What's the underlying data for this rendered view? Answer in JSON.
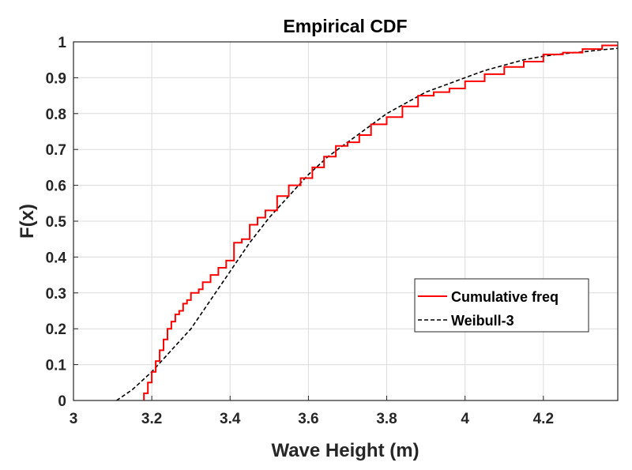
{
  "chart_data": {
    "type": "line",
    "title": "Empirical CDF",
    "xlabel": "Wave Height (m)",
    "ylabel": "F(x)",
    "xlim": [
      3.0,
      4.39
    ],
    "ylim": [
      0,
      1
    ],
    "xticks": [
      "3",
      "3.2",
      "3.4",
      "3.6",
      "3.8",
      "4",
      "4.2"
    ],
    "yticks": [
      "0",
      "0.1",
      "0.2",
      "0.3",
      "0.4",
      "0.5",
      "0.6",
      "0.7",
      "0.8",
      "0.9",
      "1"
    ],
    "grid": true,
    "legend_position": "lower-right",
    "colors": {
      "empirical": "#ff0000",
      "weibull": "#000000"
    },
    "series": [
      {
        "name": "Cumulative freq",
        "style": "solid",
        "color": "#ff0000",
        "x": [
          3.18,
          3.18,
          3.19,
          3.19,
          3.2,
          3.2,
          3.21,
          3.21,
          3.22,
          3.22,
          3.23,
          3.23,
          3.24,
          3.24,
          3.25,
          3.25,
          3.26,
          3.26,
          3.27,
          3.27,
          3.28,
          3.28,
          3.29,
          3.29,
          3.3,
          3.3,
          3.32,
          3.32,
          3.33,
          3.33,
          3.35,
          3.35,
          3.37,
          3.37,
          3.39,
          3.39,
          3.41,
          3.41,
          3.43,
          3.43,
          3.45,
          3.45,
          3.47,
          3.47,
          3.49,
          3.49,
          3.52,
          3.52,
          3.55,
          3.55,
          3.58,
          3.58,
          3.61,
          3.61,
          3.64,
          3.64,
          3.67,
          3.67,
          3.7,
          3.7,
          3.73,
          3.73,
          3.76,
          3.76,
          3.8,
          3.8,
          3.84,
          3.84,
          3.88,
          3.88,
          3.92,
          3.92,
          3.96,
          3.96,
          4.0,
          4.0,
          4.05,
          4.05,
          4.1,
          4.1,
          4.15,
          4.15,
          4.2,
          4.2,
          4.25,
          4.25,
          4.3,
          4.3,
          4.35,
          4.35,
          4.39
        ],
        "y": [
          0.0,
          0.02,
          0.02,
          0.05,
          0.05,
          0.08,
          0.08,
          0.11,
          0.11,
          0.14,
          0.14,
          0.17,
          0.17,
          0.2,
          0.2,
          0.22,
          0.22,
          0.24,
          0.24,
          0.25,
          0.25,
          0.27,
          0.27,
          0.28,
          0.28,
          0.3,
          0.3,
          0.31,
          0.31,
          0.33,
          0.33,
          0.35,
          0.35,
          0.37,
          0.37,
          0.39,
          0.39,
          0.44,
          0.44,
          0.45,
          0.45,
          0.49,
          0.49,
          0.51,
          0.51,
          0.53,
          0.53,
          0.57,
          0.57,
          0.6,
          0.6,
          0.62,
          0.62,
          0.65,
          0.65,
          0.68,
          0.68,
          0.71,
          0.71,
          0.72,
          0.72,
          0.74,
          0.74,
          0.77,
          0.77,
          0.79,
          0.79,
          0.82,
          0.82,
          0.85,
          0.85,
          0.86,
          0.86,
          0.87,
          0.87,
          0.89,
          0.89,
          0.91,
          0.91,
          0.93,
          0.93,
          0.945,
          0.945,
          0.965,
          0.965,
          0.97,
          0.97,
          0.98,
          0.98,
          0.99,
          0.99
        ]
      },
      {
        "name": "Weibull-3",
        "style": "dashed",
        "color": "#000000",
        "x": [
          3.11,
          3.15,
          3.2,
          3.25,
          3.3,
          3.35,
          3.4,
          3.45,
          3.5,
          3.55,
          3.6,
          3.65,
          3.7,
          3.75,
          3.8,
          3.85,
          3.9,
          3.95,
          4.0,
          4.05,
          4.1,
          4.15,
          4.2,
          4.25,
          4.3,
          4.35,
          4.39
        ],
        "y": [
          0.0,
          0.03,
          0.08,
          0.14,
          0.2,
          0.28,
          0.36,
          0.44,
          0.51,
          0.57,
          0.63,
          0.68,
          0.72,
          0.76,
          0.8,
          0.83,
          0.86,
          0.88,
          0.9,
          0.92,
          0.935,
          0.95,
          0.96,
          0.967,
          0.972,
          0.978,
          0.982
        ]
      }
    ]
  }
}
